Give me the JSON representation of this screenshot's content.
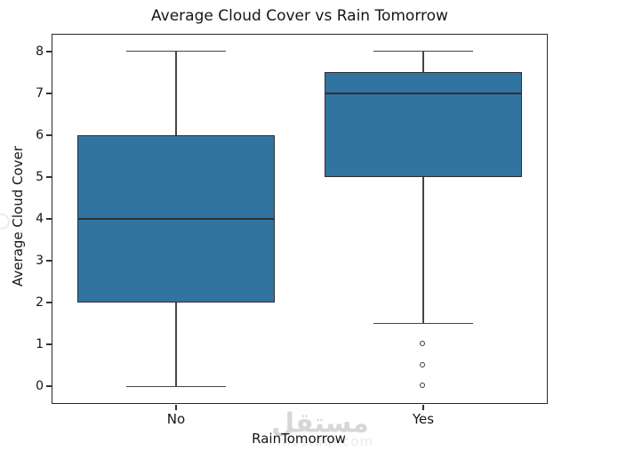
{
  "chart_data": {
    "type": "box",
    "title": "Average Cloud Cover vs Rain Tomorrow",
    "xlabel": "RainTomorrow",
    "ylabel": "Average Cloud Cover",
    "categories": [
      "No",
      "Yes"
    ],
    "boxes": [
      {
        "label": "No",
        "whisker_low": 0,
        "q1": 2,
        "median": 4,
        "q3": 6,
        "whisker_high": 8,
        "outliers": []
      },
      {
        "label": "Yes",
        "whisker_low": 1.5,
        "q1": 5,
        "median": 7,
        "q3": 7.5,
        "whisker_high": 8,
        "outliers": [
          1,
          0.5,
          0
        ]
      }
    ],
    "yticks": [
      0,
      1,
      2,
      3,
      4,
      5,
      6,
      7,
      8
    ],
    "ylim": [
      -0.4,
      8.4
    ],
    "xlim": [
      -0.5,
      1.5
    ],
    "box_width": 0.8,
    "cap_width": 0.4,
    "grid": false,
    "colors": {
      "box_fill": "#3274a1",
      "box_edge": "#2f2f2f",
      "whisker": "#454545",
      "median": "#2f2f2f",
      "flier_edge": "#3a3a3a",
      "flier_fill": "#ffffff",
      "spine": "#2b2b2b",
      "tick": "#333333",
      "text": "#161616"
    }
  },
  "watermark": {
    "arabic": "مستقل",
    "domain": "mostaql.com",
    "color_arabic": "#d7d7d7",
    "color_domain": "#eaeaea"
  }
}
